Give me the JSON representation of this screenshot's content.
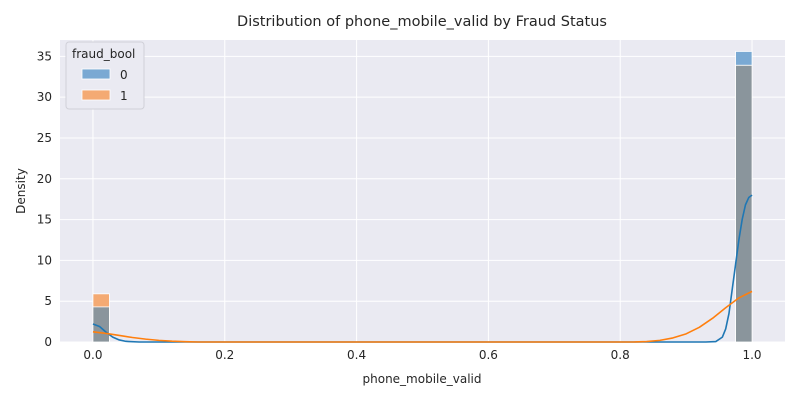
{
  "chart_data": {
    "type": "histogram_kde",
    "title": "Distribution of phone_mobile_valid by Fraud Status",
    "xlabel": "phone_mobile_valid",
    "ylabel": "Density",
    "xlim": [
      -0.05,
      1.05
    ],
    "ylim": [
      0,
      37
    ],
    "xticks": [
      0.0,
      0.2,
      0.4,
      0.6,
      0.8,
      1.0
    ],
    "xtick_labels": [
      "0.0",
      "0.2",
      "0.4",
      "0.6",
      "0.8",
      "1.0"
    ],
    "yticks": [
      0,
      5,
      10,
      15,
      20,
      25,
      30,
      35
    ],
    "ytick_labels": [
      "0",
      "5",
      "10",
      "15",
      "20",
      "25",
      "30",
      "35"
    ],
    "grid": true,
    "legend": {
      "title": "fraud_bool",
      "placement": "top-left",
      "entries": [
        {
          "label": "0",
          "color": "#7aa9d3"
        },
        {
          "label": "1",
          "color": "#f4aa73"
        }
      ]
    },
    "bin_width": 0.025,
    "overlap_color": "#8a959c",
    "series": [
      {
        "name": "0",
        "hist_color": "#7aa9d3",
        "line_color": "#1f77b4",
        "bars": [
          {
            "x0": 0.0,
            "x1": 0.025,
            "density": 4.3
          },
          {
            "x0": 0.975,
            "x1": 1.0,
            "density": 35.6
          }
        ],
        "kde": [
          [
            0.0,
            2.2
          ],
          [
            0.01,
            1.9
          ],
          [
            0.02,
            1.2
          ],
          [
            0.03,
            0.6
          ],
          [
            0.04,
            0.25
          ],
          [
            0.05,
            0.08
          ],
          [
            0.07,
            0.0
          ],
          [
            0.93,
            0.0
          ],
          [
            0.945,
            0.05
          ],
          [
            0.955,
            0.6
          ],
          [
            0.96,
            1.6
          ],
          [
            0.965,
            3.5
          ],
          [
            0.97,
            6.5
          ],
          [
            0.975,
            9.5
          ],
          [
            0.98,
            12.5
          ],
          [
            0.985,
            15.0
          ],
          [
            0.99,
            16.8
          ],
          [
            0.995,
            17.7
          ],
          [
            1.0,
            18.0
          ]
        ]
      },
      {
        "name": "1",
        "hist_color": "#f4aa73",
        "line_color": "#ff7f0e",
        "bars": [
          {
            "x0": 0.0,
            "x1": 0.025,
            "density": 5.9
          },
          {
            "x0": 0.975,
            "x1": 1.0,
            "density": 33.9
          }
        ],
        "kde": [
          [
            0.0,
            1.25
          ],
          [
            0.02,
            1.05
          ],
          [
            0.04,
            0.8
          ],
          [
            0.06,
            0.55
          ],
          [
            0.08,
            0.35
          ],
          [
            0.1,
            0.2
          ],
          [
            0.12,
            0.1
          ],
          [
            0.14,
            0.04
          ],
          [
            0.16,
            0.0
          ],
          [
            0.82,
            0.0
          ],
          [
            0.84,
            0.05
          ],
          [
            0.86,
            0.2
          ],
          [
            0.88,
            0.5
          ],
          [
            0.9,
            1.0
          ],
          [
            0.92,
            1.8
          ],
          [
            0.94,
            2.9
          ],
          [
            0.96,
            4.2
          ],
          [
            0.98,
            5.4
          ],
          [
            1.0,
            6.2
          ]
        ]
      }
    ]
  }
}
